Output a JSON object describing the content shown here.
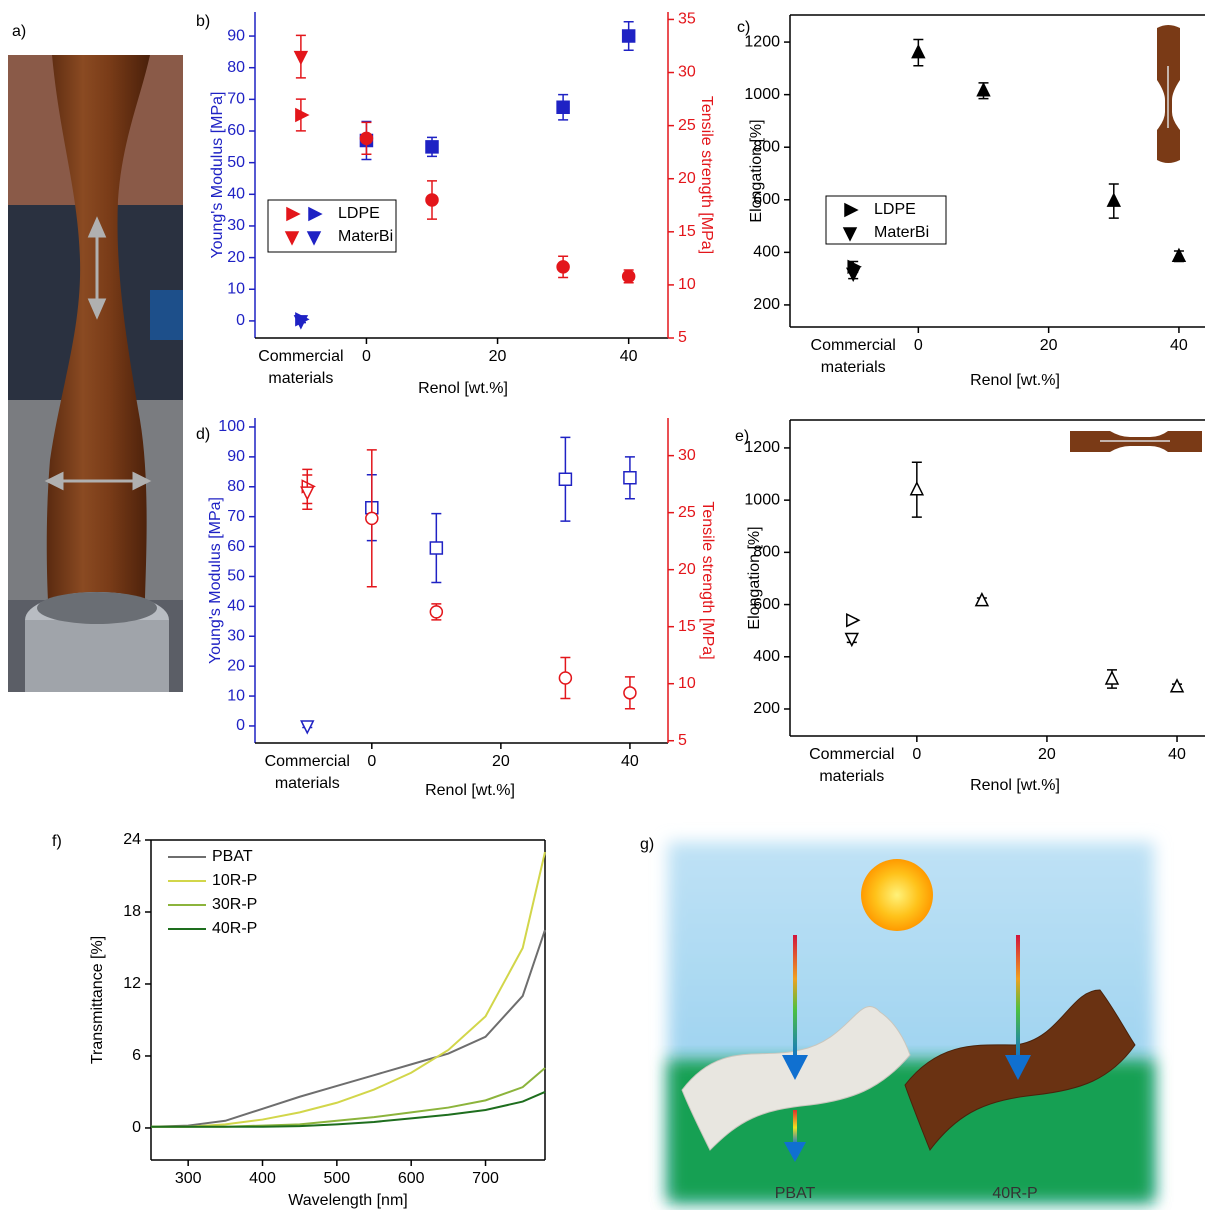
{
  "chart_data": [
    {
      "type": "scatter",
      "label": "b)",
      "xlabel": "Renol [wt.%]",
      "ylabel": "Young's Modulus [MPa]",
      "y2label": "Tensile strength [MPa]",
      "ycolor": "#1f22c4",
      "y2color": "#e3161b",
      "filled": true,
      "xlim": [
        -17,
        46
      ],
      "xticks": [
        {
          "value": -10,
          "label": "Commercial materials"
        },
        0,
        20,
        40
      ],
      "ylim": [
        -5.4,
        97.6
      ],
      "yticks": [
        0,
        10,
        20,
        30,
        40,
        50,
        60,
        70,
        80,
        90
      ],
      "y2lim": [
        5,
        35.7
      ],
      "y2ticks": [
        5,
        10,
        15,
        20,
        25,
        30,
        35
      ],
      "series": [
        {
          "name": "LDPE",
          "color": "#e3161b",
          "marker": "tri-right",
          "axis": "y2",
          "x": [
            -10
          ],
          "values": [
            26
          ],
          "errors": [
            1.5
          ]
        },
        {
          "name": "LDPE",
          "color": "#1f22c4",
          "marker": "tri-right",
          "x": [
            -10
          ],
          "values": [
            0.5
          ],
          "errors": [
            1
          ]
        },
        {
          "name": "MaterBi",
          "color": "#e3161b",
          "marker": "tri-down",
          "axis": "y2",
          "x": [
            -10
          ],
          "values": [
            31.5
          ],
          "errors": [
            2
          ]
        },
        {
          "name": "MaterBi",
          "color": "#1f22c4",
          "marker": "tri-down",
          "x": [
            -10
          ],
          "values": [
            0
          ],
          "errors": [
            0.5
          ]
        },
        {
          "color": "#1f22c4",
          "marker": "square",
          "x": [
            0,
            10,
            30,
            40
          ],
          "values": [
            57,
            55,
            67.5,
            90
          ],
          "errors": [
            6,
            3,
            4,
            4.5
          ]
        },
        {
          "color": "#e3161b",
          "marker": "circle",
          "axis": "y2",
          "x": [
            0,
            10,
            30,
            40
          ],
          "values": [
            23.8,
            18,
            11.7,
            10.8
          ],
          "errors": [
            1.5,
            1.8,
            1,
            0.6
          ]
        }
      ]
    },
    {
      "type": "scatter",
      "label": "c)",
      "xlabel": "Renol [wt.%]",
      "ylabel": "Elongation [%]",
      "filled": true,
      "xlim": [
        -19.7,
        44
      ],
      "xticks": [
        {
          "value": -10,
          "label": "Commercial materials"
        },
        0,
        20,
        40
      ],
      "ylim": [
        116,
        1303
      ],
      "yticks": [
        200,
        400,
        600,
        800,
        1000,
        1200
      ],
      "series": [
        {
          "name": "LDPE",
          "color": "#000000",
          "marker": "tri-right",
          "x": [
            -10
          ],
          "values": [
            345
          ],
          "errors": [
            20
          ]
        },
        {
          "name": "MaterBi",
          "color": "#000000",
          "marker": "tri-down",
          "x": [
            -10
          ],
          "values": [
            320
          ],
          "errors": [
            20
          ]
        },
        {
          "color": "#000000",
          "marker": "tri-up",
          "x": [
            0,
            10,
            30,
            40
          ],
          "values": [
            1160,
            1015,
            595,
            385
          ],
          "errors": [
            50,
            30,
            65,
            20
          ]
        }
      ]
    },
    {
      "type": "scatter",
      "label": "d)",
      "xlabel": "Renol [wt.%]",
      "ylabel": "Young's Modulus [MPa]",
      "y2label": "Tensile strength [MPa]",
      "ycolor": "#1f22c4",
      "y2color": "#e3161b",
      "filled": false,
      "xlim": [
        -18.1,
        45.9
      ],
      "xticks": [
        {
          "value": -10,
          "label": "Commercial materials"
        },
        0,
        20,
        40
      ],
      "ylim": [
        -5.7,
        103
      ],
      "yticks": [
        0,
        10,
        20,
        30,
        40,
        50,
        60,
        70,
        80,
        90,
        100
      ],
      "y2lim": [
        4.8,
        33.3
      ],
      "y2ticks": [
        5,
        10,
        15,
        20,
        25,
        30
      ],
      "series": [
        {
          "color": "#e3161b",
          "marker": "tri-right",
          "axis": "y2",
          "x": [
            -10
          ],
          "values": [
            27.3
          ],
          "errors": [
            1.5
          ]
        },
        {
          "color": "#e3161b",
          "marker": "tri-down",
          "axis": "y2",
          "x": [
            -10
          ],
          "values": [
            26.8
          ],
          "errors": [
            1.5
          ]
        },
        {
          "color": "#1f22c4",
          "marker": "tri-down",
          "x": [
            -10
          ],
          "values": [
            0
          ],
          "errors": [
            0.5
          ]
        },
        {
          "color": "#1f22c4",
          "marker": "square",
          "x": [
            0,
            10,
            30,
            40
          ],
          "values": [
            73,
            59.5,
            82.5,
            83
          ],
          "errors": [
            11,
            11.5,
            14,
            7
          ]
        },
        {
          "color": "#e3161b",
          "marker": "circle",
          "axis": "y2",
          "x": [
            0,
            10,
            30,
            40
          ],
          "values": [
            24.5,
            16.3,
            10.5,
            9.2
          ],
          "errors": [
            6,
            0.7,
            1.8,
            1.4
          ]
        }
      ]
    },
    {
      "type": "scatter",
      "label": "e)",
      "xlabel": "Renol [wt.%]",
      "ylabel": "Elongation [%]",
      "filled": false,
      "xlim": [
        -19.5,
        44.3
      ],
      "xticks": [
        {
          "value": -10,
          "label": "Commercial materials"
        },
        0,
        20,
        40
      ],
      "ylim": [
        96.5,
        1307
      ],
      "yticks": [
        200,
        400,
        600,
        800,
        1000,
        1200
      ],
      "series": [
        {
          "color": "#000000",
          "marker": "tri-right",
          "x": [
            -10
          ],
          "values": [
            540
          ],
          "errors": [
            5
          ]
        },
        {
          "color": "#000000",
          "marker": "tri-down",
          "x": [
            -10
          ],
          "values": [
            470
          ],
          "errors": [
            15
          ]
        },
        {
          "color": "#000000",
          "marker": "tri-up",
          "x": [
            0,
            10,
            30,
            40
          ],
          "values": [
            1040,
            615,
            315,
            285
          ],
          "errors": [
            105,
            10,
            35,
            10
          ]
        }
      ]
    },
    {
      "type": "line",
      "label": "f)",
      "xlabel": "Wavelength [nm]",
      "ylabel": "Transmittance [%]",
      "xlim": [
        250,
        780
      ],
      "xticks": [
        300,
        400,
        500,
        600,
        700
      ],
      "ylim": [
        -2.67,
        24
      ],
      "yticks": [
        0,
        6,
        12,
        18,
        24
      ],
      "x": [
        250,
        300,
        350,
        400,
        450,
        500,
        550,
        600,
        650,
        700,
        750,
        780
      ],
      "series": [
        {
          "name": "PBAT",
          "color": "#6e6e6e",
          "values": [
            0.1,
            0.2,
            0.6,
            1.6,
            2.6,
            3.5,
            4.4,
            5.3,
            6.2,
            7.6,
            11,
            16.5
          ]
        },
        {
          "name": "10R-P",
          "color": "#d2d64a",
          "values": [
            0.1,
            0.1,
            0.3,
            0.7,
            1.3,
            2.1,
            3.2,
            4.6,
            6.5,
            9.3,
            15,
            23
          ]
        },
        {
          "name": "30R-P",
          "color": "#8cb43c",
          "values": [
            0.1,
            0.1,
            0.1,
            0.2,
            0.3,
            0.6,
            0.9,
            1.3,
            1.7,
            2.3,
            3.4,
            5
          ]
        },
        {
          "name": "40R-P",
          "color": "#1e6e1e",
          "values": [
            0.1,
            0.1,
            0.1,
            0.1,
            0.15,
            0.3,
            0.5,
            0.8,
            1.1,
            1.5,
            2.2,
            3
          ]
        }
      ]
    }
  ],
  "figure": {
    "photo_label": "a)",
    "illustration": {
      "label": "g)",
      "captions": [
        "PBAT",
        "40R-P"
      ]
    }
  }
}
